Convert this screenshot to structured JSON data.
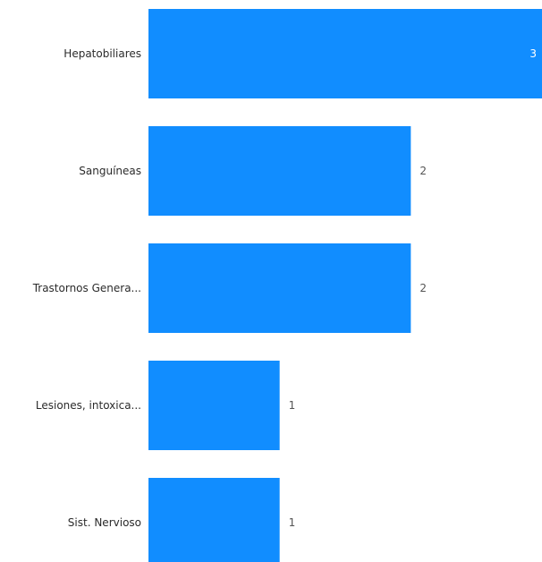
{
  "chart_data": {
    "type": "bar",
    "orientation": "horizontal",
    "categories": [
      "Hepatobiliares",
      "Sanguíneas",
      "Trastornos Genera...",
      "Lesiones, intoxica...",
      "Sist. Nervioso"
    ],
    "values": [
      3,
      2,
      2,
      1,
      1
    ],
    "xlim": [
      0,
      3
    ],
    "grid": false,
    "legend": "none",
    "bar_color": "#118dff",
    "label_color": "#2b2b2b",
    "value_label_color": "#555555",
    "value_label_inside_color": "#ffffff"
  }
}
